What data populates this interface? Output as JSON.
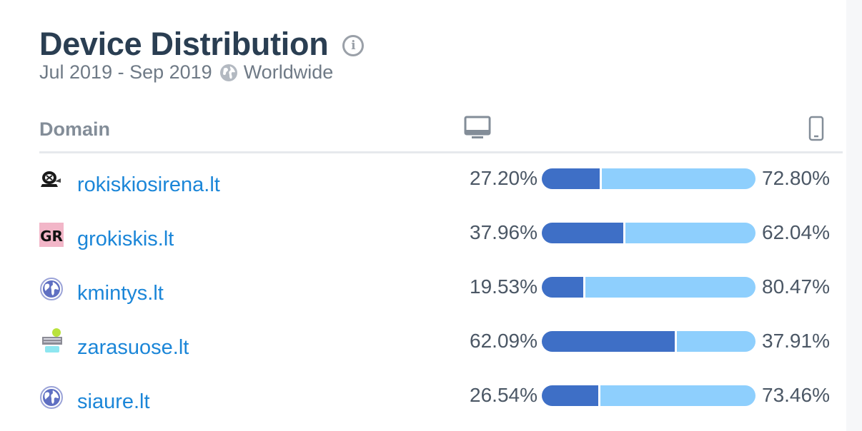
{
  "header": {
    "title": "Device Distribution",
    "date_range": "Jul 2019 - Sep 2019",
    "region": "Worldwide"
  },
  "table": {
    "column_domain": "Domain",
    "desktop_icon": "desktop-monitor-icon",
    "mobile_icon": "mobile-phone-icon"
  },
  "colors": {
    "desktop": "#3e6fc6",
    "mobile": "#8ecffd",
    "link": "#1b86d8"
  },
  "chart_data": {
    "type": "bar",
    "stacked": true,
    "orientation": "horizontal",
    "categories": [
      "rokiskiosirena.lt",
      "grokiskis.lt",
      "kmintys.lt",
      "zarasuose.lt",
      "siaure.lt"
    ],
    "series": [
      {
        "values": [
          27.2,
          37.96,
          19.53,
          62.09,
          26.54
        ]
      },
      {
        "values": [
          72.8,
          62.04,
          80.47,
          37.91,
          73.46
        ]
      }
    ],
    "rows": [
      {
        "domain": "rokiskiosirena.lt",
        "favicon": "rokiskiosirena-favicon",
        "desktop": 27.2,
        "desktop_label": "27.20%",
        "mobile": 72.8,
        "mobile_label": "72.80%"
      },
      {
        "domain": "grokiskis.lt",
        "favicon": "gr-favicon",
        "favicon_text": "GR",
        "desktop": 37.96,
        "desktop_label": "37.96%",
        "mobile": 62.04,
        "mobile_label": "62.04%"
      },
      {
        "domain": "kmintys.lt",
        "favicon": "globe-favicon",
        "desktop": 19.53,
        "desktop_label": "19.53%",
        "mobile": 80.47,
        "mobile_label": "80.47%"
      },
      {
        "domain": "zarasuose.lt",
        "favicon": "zarasuose-favicon",
        "desktop": 62.09,
        "desktop_label": "62.09%",
        "mobile": 37.91,
        "mobile_label": "37.91%"
      },
      {
        "domain": "siaure.lt",
        "favicon": "globe-favicon",
        "desktop": 26.54,
        "desktop_label": "26.54%",
        "mobile": 73.46,
        "mobile_label": "73.46%"
      }
    ]
  }
}
